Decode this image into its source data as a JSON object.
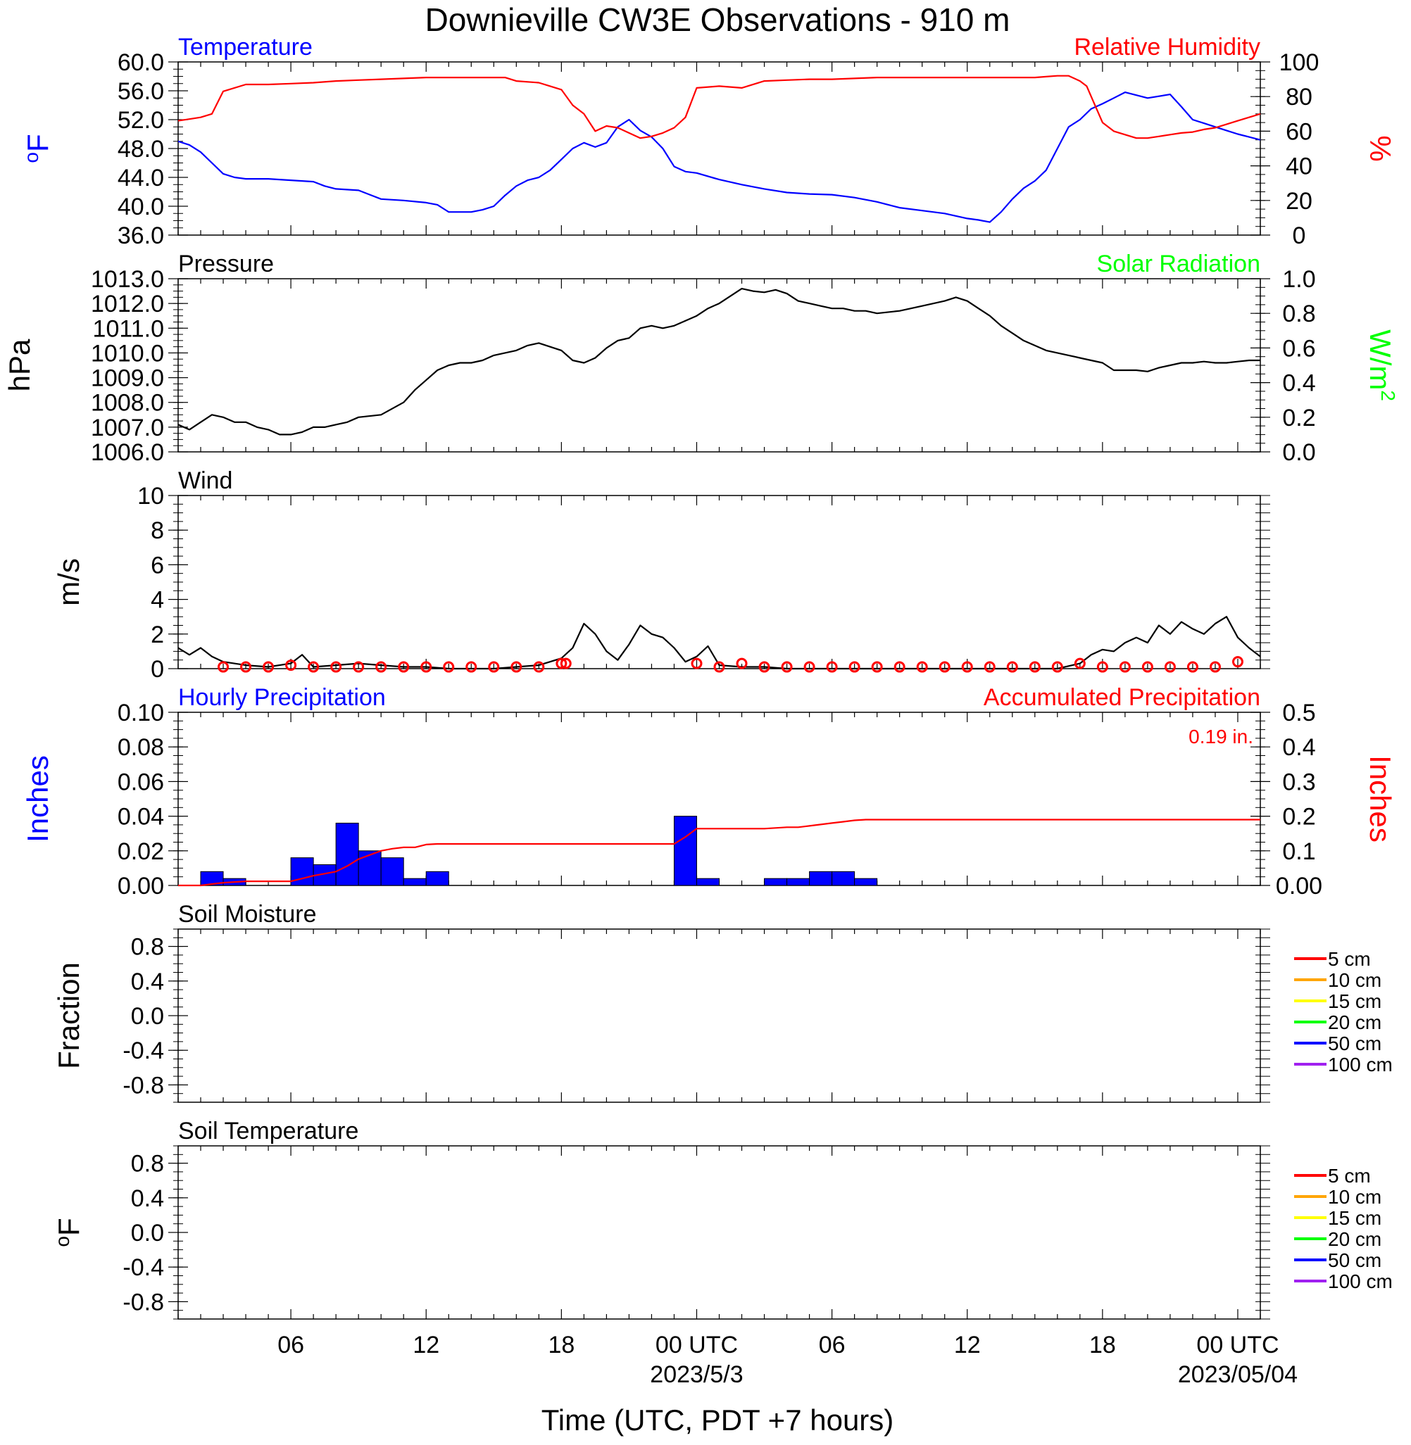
{
  "title": "Downieville CW3E Observations - 910 m",
  "xaxis": {
    "title": "Time (UTC, PDT +7 hours)",
    "range_hours": [
      0,
      48
    ],
    "tick_labels": [
      {
        "hour": 5,
        "label": "06"
      },
      {
        "hour": 11,
        "label": "12"
      },
      {
        "hour": 17,
        "label": "18"
      },
      {
        "hour": 23,
        "label": "00 UTC",
        "date": "2023/5/3"
      },
      {
        "hour": 29,
        "label": "06"
      },
      {
        "hour": 35,
        "label": "12"
      },
      {
        "hour": 41,
        "label": "18"
      },
      {
        "hour": 47,
        "label": "00 UTC",
        "date": "2023/05/04"
      }
    ]
  },
  "chart_data": [
    {
      "id": "temp_rh",
      "type": "line",
      "left_title": "Temperature",
      "right_title": "Relative Humidity",
      "left_unit": "oF",
      "right_unit": "%",
      "left_ylim": [
        36,
        60
      ],
      "right_ylim": [
        0,
        100
      ],
      "left_ticks": [
        "36.0",
        "40.0",
        "44.0",
        "48.0",
        "52.0",
        "56.0",
        "60.0"
      ],
      "right_ticks": [
        "0",
        "20",
        "40",
        "60",
        "80",
        "100"
      ],
      "series": [
        {
          "name": "Temperature",
          "axis": "left",
          "color": "#0000ff",
          "x": [
            0,
            0.5,
            1,
            1.5,
            2,
            2.5,
            3,
            4,
            5,
            6,
            6.5,
            7,
            8,
            8.5,
            9,
            10,
            11,
            11.5,
            12,
            13,
            13.5,
            14,
            14.5,
            15,
            15.5,
            16,
            16.5,
            17,
            17.5,
            18,
            18.5,
            19,
            19.5,
            20,
            20.5,
            21,
            21.5,
            22,
            22.5,
            23,
            24,
            25,
            26,
            27,
            28,
            29,
            30,
            31,
            32,
            33,
            34,
            35,
            35.5,
            36,
            36.5,
            37,
            37.5,
            38,
            38.5,
            39,
            39.5,
            40,
            40.5,
            41,
            41.5,
            42,
            43,
            44,
            44.5,
            45,
            45.5,
            46,
            46.5,
            47,
            47.5,
            48
          ],
          "y": [
            49,
            48.5,
            47.5,
            46,
            44.5,
            44,
            43.8,
            43.8,
            43.6,
            43.4,
            42.8,
            42.4,
            42.2,
            41.6,
            41,
            40.8,
            40.5,
            40.2,
            39.2,
            39.2,
            39.5,
            40,
            41.5,
            42.8,
            43.6,
            44,
            45,
            46.5,
            48,
            48.8,
            48.2,
            48.8,
            51,
            52,
            50.5,
            49.6,
            48,
            45.5,
            44.8,
            44.6,
            43.7,
            43,
            42.4,
            41.9,
            41.7,
            41.6,
            41.2,
            40.6,
            39.8,
            39.4,
            39,
            38.3,
            38.1,
            37.8,
            39.2,
            41,
            42.5,
            43.5,
            45,
            48,
            51,
            52,
            53.5,
            54.2,
            55,
            55.8,
            55,
            55.5,
            53.8,
            52,
            51.5,
            51,
            50.5,
            50,
            49.6,
            49.2
          ]
        },
        {
          "name": "Relative Humidity",
          "axis": "right",
          "color": "#ff0000",
          "x": [
            0,
            0.5,
            1,
            1.5,
            2,
            3,
            4,
            5,
            6,
            7,
            8,
            9,
            10,
            11,
            12,
            13,
            13.5,
            14,
            14.5,
            15,
            16,
            16.5,
            17,
            17.5,
            18,
            18.5,
            19,
            19.5,
            20,
            20.5,
            21,
            21.5,
            22,
            22.5,
            23,
            24,
            25,
            26,
            27,
            28,
            29,
            30,
            31,
            32,
            33,
            34,
            35,
            36,
            37,
            38,
            38.5,
            39,
            39.5,
            40,
            40.3,
            40.5,
            41,
            41.5,
            42,
            42.5,
            43,
            43.5,
            44,
            44.5,
            45,
            45.5,
            46,
            46.5,
            47,
            47.5,
            48
          ],
          "y": [
            66,
            67,
            68,
            70,
            83,
            87,
            87,
            87.5,
            88,
            89,
            89.5,
            90,
            90.5,
            91,
            91,
            91,
            91,
            91,
            91,
            89,
            88,
            86,
            84,
            75,
            70,
            60,
            63,
            62,
            59,
            56,
            57,
            59,
            62,
            68,
            85,
            86,
            85,
            89,
            89.5,
            90,
            90,
            90.5,
            91,
            91,
            91,
            91,
            91,
            91,
            91,
            91,
            91.5,
            92,
            92,
            89,
            86,
            80,
            65,
            60,
            58,
            56,
            56,
            57,
            58,
            59,
            59.5,
            61,
            62,
            64,
            66,
            68,
            70
          ]
        }
      ]
    },
    {
      "id": "pressure",
      "type": "line",
      "left_title": "Pressure",
      "right_title": "Solar Radiation",
      "left_unit": "hPa",
      "right_unit": "W/m2",
      "left_ylim": [
        1006,
        1013
      ],
      "right_ylim": [
        0,
        1
      ],
      "left_ticks": [
        "1006.0",
        "1007.0",
        "1008.0",
        "1009.0",
        "1010.0",
        "1011.0",
        "1012.0",
        "1013.0"
      ],
      "right_ticks": [
        "0.0",
        "0.2",
        "0.4",
        "0.6",
        "0.8",
        "1.0"
      ],
      "series": [
        {
          "name": "Pressure",
          "axis": "left",
          "color": "#000000",
          "x": [
            0,
            0.5,
            1,
            1.5,
            2,
            2.5,
            3,
            3.5,
            4,
            4.5,
            5,
            5.5,
            6,
            6.5,
            7,
            7.5,
            8,
            9,
            10,
            10.5,
            11,
            11.5,
            12,
            12.5,
            13,
            13.5,
            14,
            14.5,
            15,
            15.5,
            16,
            17,
            17.5,
            18,
            18.5,
            19,
            19.5,
            20,
            20.5,
            21,
            21.5,
            22,
            22.5,
            23,
            23.5,
            24,
            24.5,
            25,
            25.5,
            26,
            26.5,
            27,
            27.5,
            28,
            28.5,
            29,
            29.5,
            30,
            30.5,
            31,
            32,
            33,
            34,
            34.5,
            35,
            35.5,
            36,
            36.5,
            37,
            37.5,
            38,
            38.5,
            39,
            39.5,
            40,
            40.5,
            41,
            41.5,
            42,
            42.5,
            43,
            43.5,
            44,
            44.5,
            45,
            45.5,
            46,
            46.5,
            47,
            47.5,
            48
          ],
          "y": [
            1007.1,
            1006.9,
            1007.2,
            1007.5,
            1007.4,
            1007.2,
            1007.2,
            1007,
            1006.9,
            1006.7,
            1006.7,
            1006.8,
            1007,
            1007,
            1007.1,
            1007.2,
            1007.4,
            1007.5,
            1008,
            1008.5,
            1008.9,
            1009.3,
            1009.5,
            1009.6,
            1009.6,
            1009.7,
            1009.9,
            1010,
            1010.1,
            1010.3,
            1010.4,
            1010.1,
            1009.7,
            1009.6,
            1009.8,
            1010.2,
            1010.5,
            1010.6,
            1011,
            1011.1,
            1011,
            1011.1,
            1011.3,
            1011.5,
            1011.8,
            1012,
            1012.3,
            1012.6,
            1012.5,
            1012.45,
            1012.55,
            1012.4,
            1012.1,
            1012,
            1011.9,
            1011.8,
            1011.8,
            1011.7,
            1011.7,
            1011.6,
            1011.7,
            1011.9,
            1012.1,
            1012.25,
            1012.1,
            1011.8,
            1011.5,
            1011.1,
            1010.8,
            1010.5,
            1010.3,
            1010.1,
            1010,
            1009.9,
            1009.8,
            1009.7,
            1009.6,
            1009.3,
            1009.3,
            1009.3,
            1009.25,
            1009.4,
            1009.5,
            1009.6,
            1009.6,
            1009.65,
            1009.6,
            1009.6,
            1009.65,
            1009.7,
            1009.7
          ]
        }
      ]
    },
    {
      "id": "wind",
      "type": "line",
      "left_title": "Wind",
      "left_unit": "m/s",
      "left_ylim": [
        0,
        10
      ],
      "left_ticks": [
        "0",
        "2",
        "4",
        "6",
        "8",
        "10"
      ],
      "series": [
        {
          "name": "Wind",
          "axis": "left",
          "color": "#000000",
          "x": [
            0,
            0.5,
            1,
            1.5,
            2,
            3,
            4,
            5,
            5.5,
            6,
            7,
            8,
            9,
            10,
            11,
            12,
            13,
            14,
            15,
            16,
            16.5,
            17,
            17.5,
            18,
            18.5,
            19,
            19.5,
            20,
            20.5,
            21,
            21.5,
            22,
            22.5,
            23,
            23.5,
            24,
            25,
            26,
            27,
            28,
            29,
            30,
            31,
            32,
            33,
            34,
            35,
            36,
            37,
            38,
            39,
            40,
            40.5,
            41,
            41.5,
            42,
            42.5,
            43,
            43.5,
            44,
            44.5,
            45,
            45.5,
            46,
            46.5,
            47,
            47.5,
            48
          ],
          "y": [
            1.2,
            0.8,
            1.2,
            0.7,
            0.4,
            0.2,
            0.1,
            0.3,
            0.8,
            0.1,
            0.2,
            0.3,
            0.2,
            0.1,
            0.1,
            0,
            0,
            0,
            0.1,
            0.2,
            0.4,
            0.6,
            1.2,
            2.6,
            2,
            1,
            0.5,
            1.4,
            2.5,
            2,
            1.8,
            1.2,
            0.4,
            0.7,
            1.3,
            0.2,
            0.1,
            0.1,
            0,
            0,
            0,
            0,
            0,
            0,
            0,
            0,
            0,
            0,
            0,
            0,
            0,
            0.3,
            0.8,
            1.1,
            1,
            1.5,
            1.8,
            1.5,
            2.5,
            2,
            2.7,
            2.3,
            2,
            2.6,
            3,
            1.8,
            1.2,
            0.7
          ]
        },
        {
          "name": "Barb",
          "axis": "left",
          "color": "#ff0000",
          "x": [
            2,
            3,
            4,
            5,
            6,
            7,
            8,
            9,
            10,
            11,
            12,
            13,
            14,
            15,
            16,
            17,
            17.2,
            23,
            24,
            25,
            26,
            27,
            28,
            29,
            30,
            31,
            32,
            33,
            34,
            35,
            36,
            37,
            38,
            39,
            40,
            41,
            42,
            43,
            44,
            45,
            46,
            47
          ],
          "y": [
            0.1,
            0.1,
            0.1,
            0.2,
            0.1,
            0.1,
            0.1,
            0.1,
            0.1,
            0.1,
            0.1,
            0.1,
            0.1,
            0.1,
            0.1,
            0.3,
            0.3,
            0.3,
            0.1,
            0.3,
            0.1,
            0.1,
            0.1,
            0.1,
            0.1,
            0.1,
            0.1,
            0.1,
            0.1,
            0.1,
            0.1,
            0.1,
            0.1,
            0.1,
            0.3,
            0.1,
            0.1,
            0.1,
            0.1,
            0.1,
            0.1,
            0.4
          ]
        }
      ]
    },
    {
      "id": "precip",
      "type": "bar",
      "left_title": "Hourly Precipitation",
      "right_title": "Accumulated Precipitation",
      "left_unit": "Inches",
      "right_unit": "Inches",
      "annotation": "0.19 in.",
      "left_ylim": [
        0,
        0.1
      ],
      "right_ylim": [
        0,
        0.5
      ],
      "left_ticks": [
        "0.00",
        "0.02",
        "0.04",
        "0.06",
        "0.08",
        "0.10"
      ],
      "right_ticks": [
        "0.00",
        "0.1",
        "0.2",
        "0.3",
        "0.4",
        "0.5"
      ],
      "bars": [
        {
          "start": 1,
          "value": 0.008
        },
        {
          "start": 2,
          "value": 0.004
        },
        {
          "start": 5,
          "value": 0.016
        },
        {
          "start": 6,
          "value": 0.012
        },
        {
          "start": 7,
          "value": 0.036
        },
        {
          "start": 8,
          "value": 0.02
        },
        {
          "start": 9,
          "value": 0.016
        },
        {
          "start": 10,
          "value": 0.004
        },
        {
          "start": 11,
          "value": 0.008
        },
        {
          "start": 22,
          "value": 0.04
        },
        {
          "start": 23,
          "value": 0.004
        },
        {
          "start": 26,
          "value": 0.004
        },
        {
          "start": 27,
          "value": 0.004
        },
        {
          "start": 28,
          "value": 0.008
        },
        {
          "start": 29,
          "value": 0.008
        },
        {
          "start": 30,
          "value": 0.004
        }
      ],
      "series": [
        {
          "name": "Accumulated Precipitation",
          "axis": "right",
          "color": "#ff0000",
          "x": [
            0,
            1,
            1.5,
            2,
            2.5,
            3,
            5,
            5.5,
            6,
            6.5,
            7,
            7.5,
            8,
            8.5,
            9,
            9.5,
            10,
            10.5,
            11,
            11.5,
            12,
            22,
            22.5,
            23,
            24,
            25,
            26,
            27,
            27.5,
            28,
            28.5,
            29,
            29.5,
            30,
            30.5,
            31,
            48
          ],
          "y": [
            0,
            0,
            0.004,
            0.008,
            0.01,
            0.012,
            0.012,
            0.02,
            0.028,
            0.034,
            0.04,
            0.056,
            0.076,
            0.088,
            0.1,
            0.106,
            0.11,
            0.11,
            0.118,
            0.12,
            0.12,
            0.12,
            0.14,
            0.164,
            0.164,
            0.164,
            0.164,
            0.168,
            0.168,
            0.172,
            0.176,
            0.18,
            0.184,
            0.188,
            0.19,
            0.19,
            0.19
          ]
        }
      ]
    },
    {
      "id": "soil_moisture",
      "type": "line",
      "left_title": "Soil Moisture",
      "left_unit": "Fraction",
      "left_ylim": [
        -1,
        1
      ],
      "left_ticks": [
        "-0.8",
        "-0.4",
        "0.0",
        "0.4",
        "0.8"
      ],
      "legend": [
        {
          "label": "5 cm",
          "color": "#ff0000"
        },
        {
          "label": "10 cm",
          "color": "#ffa500"
        },
        {
          "label": "15 cm",
          "color": "#ffff00"
        },
        {
          "label": "20 cm",
          "color": "#00ff00"
        },
        {
          "label": "50 cm",
          "color": "#0000ff"
        },
        {
          "label": "100 cm",
          "color": "#a020f0"
        }
      ],
      "series": []
    },
    {
      "id": "soil_temp",
      "type": "line",
      "left_title": "Soil Temperature",
      "left_unit": "oF",
      "left_ylim": [
        -1,
        1
      ],
      "left_ticks": [
        "-0.8",
        "-0.4",
        "0.0",
        "0.4",
        "0.8"
      ],
      "legend": [
        {
          "label": "5 cm",
          "color": "#ff0000"
        },
        {
          "label": "10 cm",
          "color": "#ffa500"
        },
        {
          "label": "15 cm",
          "color": "#ffff00"
        },
        {
          "label": "20 cm",
          "color": "#00ff00"
        },
        {
          "label": "50 cm",
          "color": "#0000ff"
        },
        {
          "label": "100 cm",
          "color": "#a020f0"
        }
      ],
      "series": []
    }
  ]
}
